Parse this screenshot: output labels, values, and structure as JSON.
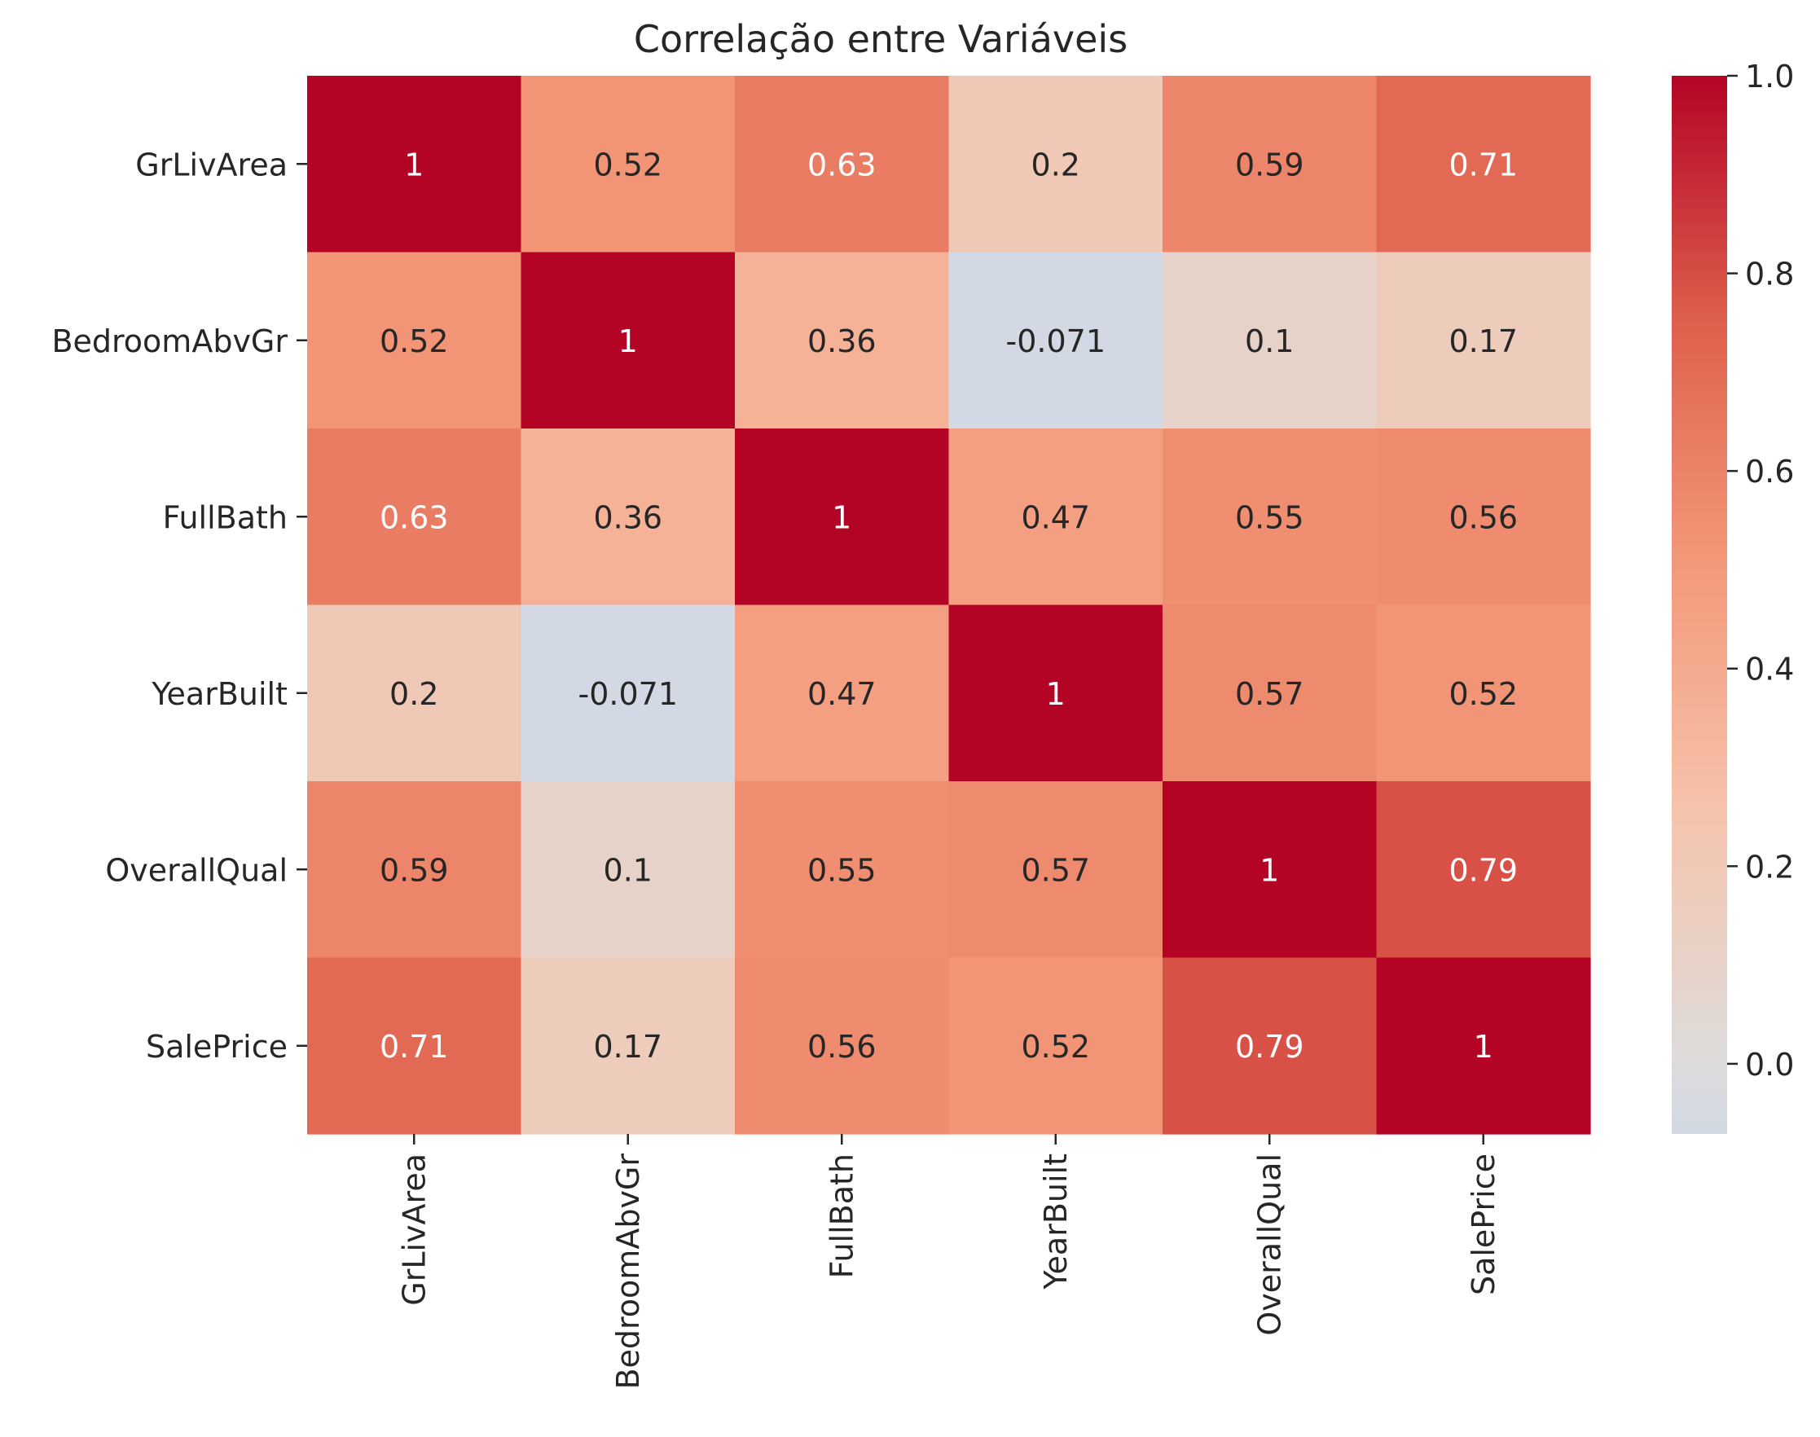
{
  "chart_data": {
    "type": "heatmap",
    "title": "Correlação entre Variáveis",
    "xlabel": "",
    "ylabel": "",
    "row_labels": [
      "GrLivArea",
      "BedroomAbvGr",
      "FullBath",
      "YearBuilt",
      "OverallQual",
      "SalePrice"
    ],
    "col_labels": [
      "GrLivArea",
      "BedroomAbvGr",
      "FullBath",
      "YearBuilt",
      "OverallQual",
      "SalePrice"
    ],
    "values": [
      [
        1,
        0.52,
        0.63,
        0.2,
        0.59,
        0.71
      ],
      [
        0.52,
        1,
        0.36,
        -0.071,
        0.1,
        0.17
      ],
      [
        0.63,
        0.36,
        1,
        0.47,
        0.55,
        0.56
      ],
      [
        0.2,
        -0.071,
        0.47,
        1,
        0.57,
        0.52
      ],
      [
        0.59,
        0.1,
        0.55,
        0.57,
        1,
        0.79
      ],
      [
        0.71,
        0.17,
        0.56,
        0.52,
        0.79,
        1
      ]
    ],
    "annotations": [
      [
        "1",
        "0.52",
        "0.63",
        "0.2",
        "0.59",
        "0.71"
      ],
      [
        "0.52",
        "1",
        "0.36",
        "-0.071",
        "0.1",
        "0.17"
      ],
      [
        "0.63",
        "0.36",
        "1",
        "0.47",
        "0.55",
        "0.56"
      ],
      [
        "0.2",
        "-0.071",
        "0.47",
        "1",
        "0.57",
        "0.52"
      ],
      [
        "0.59",
        "0.1",
        "0.55",
        "0.57",
        "1",
        "0.79"
      ],
      [
        "0.71",
        "0.17",
        "0.56",
        "0.52",
        "0.79",
        "1"
      ]
    ],
    "colormap": "coolwarm",
    "color_center": 0,
    "vmin": -0.071,
    "vmax": 1.0,
    "colorbar": {
      "ticks": [
        0.0,
        0.2,
        0.4,
        0.6,
        0.8,
        1.0
      ],
      "tick_labels": [
        "0.0",
        "0.2",
        "0.4",
        "0.6",
        "0.8",
        "1.0"
      ]
    },
    "grid": false,
    "legend": "colorbar-right"
  }
}
